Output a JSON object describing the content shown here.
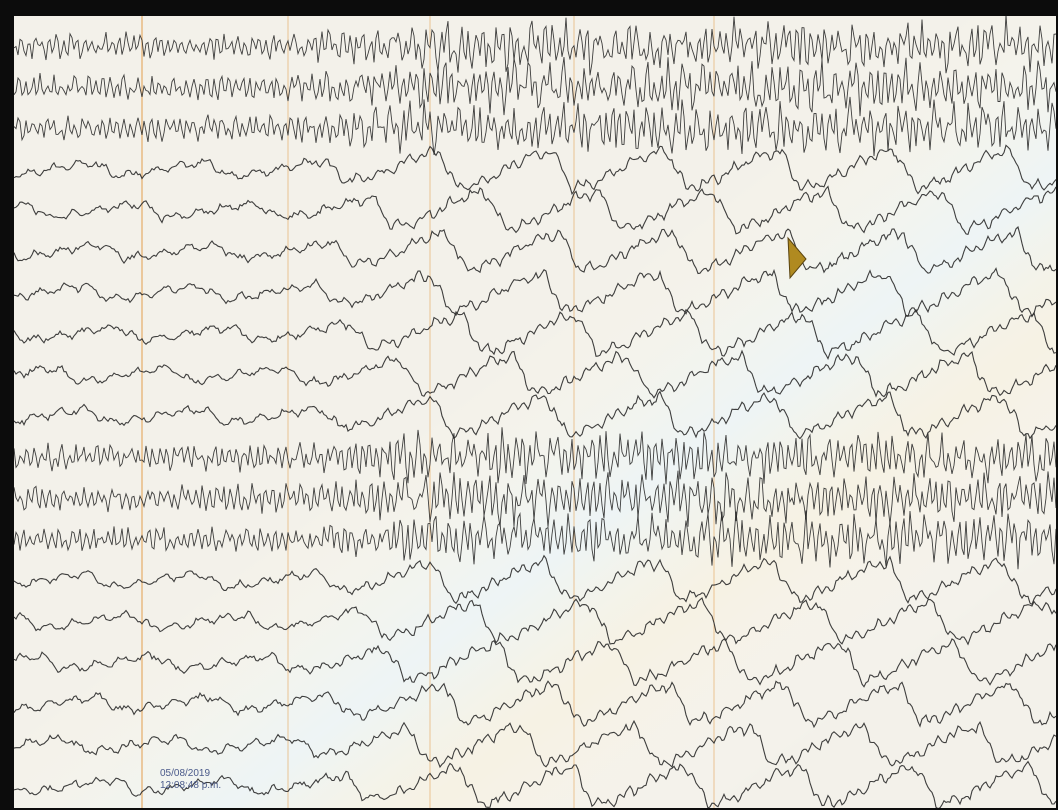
{
  "recording": {
    "date": "05/08/2019",
    "time": "12:08:48 p.m."
  },
  "display": {
    "background_color": "#f3f1ea",
    "bezel_color": "#0c0c0c",
    "trace_color": "#2a2a2a",
    "gridline_color": "#e6b070",
    "timestamp_color": "#4a5a8a",
    "cursor_icon": "arrow-pointer-icon"
  }
}
